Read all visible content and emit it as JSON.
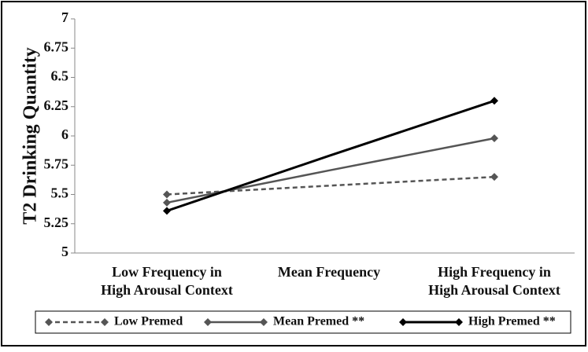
{
  "chart_data": {
    "type": "line",
    "y_label": "T2 Drinking Quantity",
    "categories": [
      [
        "Low Frequency in",
        "High Arousal Context"
      ],
      [
        "Mean Frequency"
      ],
      [
        "High Frequency in",
        "High Arousal Context"
      ]
    ],
    "series": [
      {
        "name": "Low Premed",
        "color": "#555555",
        "dash": true,
        "values": [
          5.5,
          5.575,
          5.65
        ]
      },
      {
        "name": "Mean Premed **",
        "color": "#555555",
        "dash": false,
        "values": [
          5.43,
          5.705,
          5.98
        ]
      },
      {
        "name": "High Premed **",
        "color": "#000000",
        "dash": false,
        "values": [
          5.36,
          5.83,
          6.3
        ]
      }
    ],
    "ylim": [
      5,
      7
    ],
    "yticks": [
      5,
      5.25,
      5.5,
      5.75,
      6,
      6.25,
      6.5,
      6.75,
      7
    ],
    "grid": false,
    "legend": "bottom"
  }
}
